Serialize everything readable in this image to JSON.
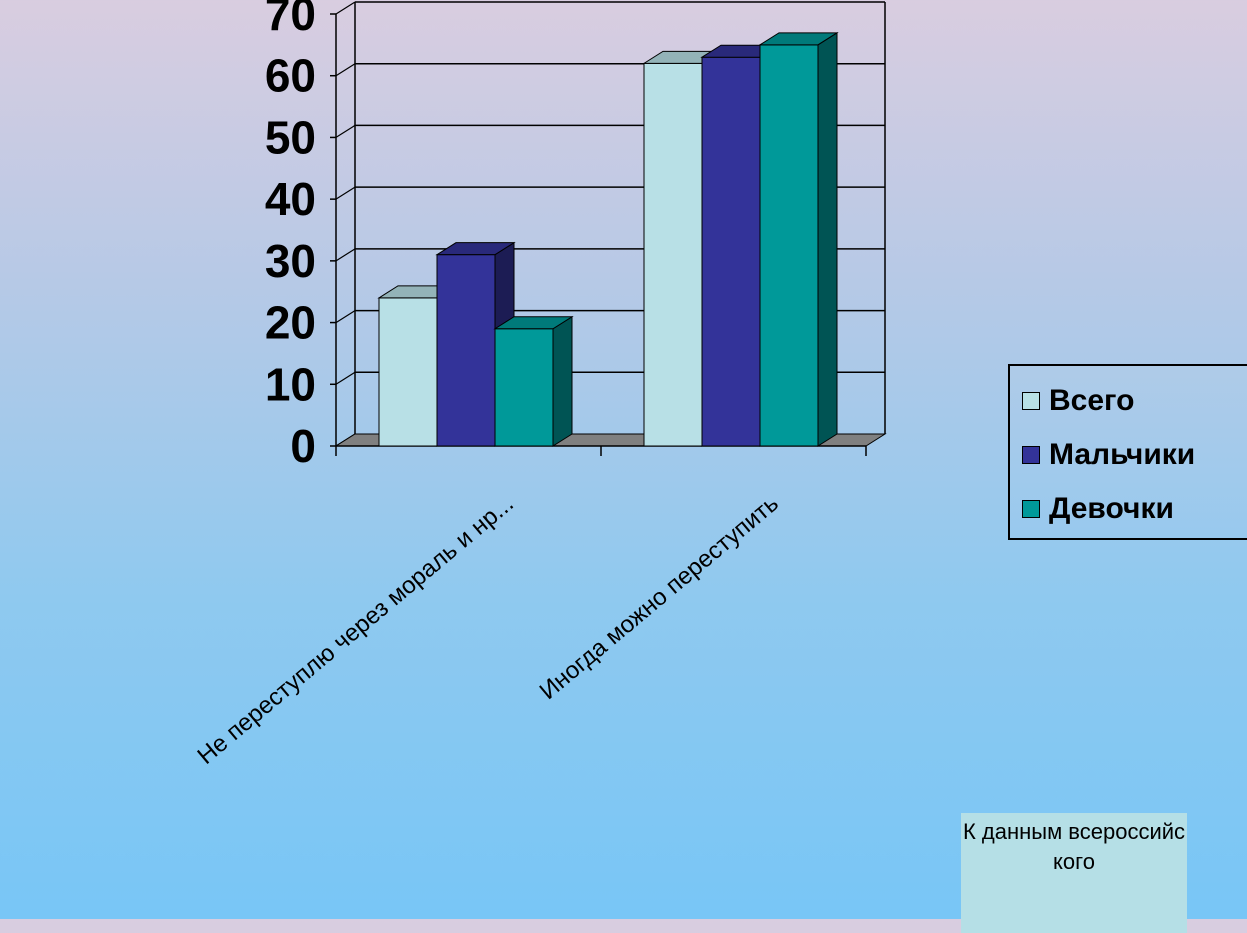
{
  "chart_data": {
    "type": "bar",
    "categories": [
      "Не переступлю через мораль и нр...",
      "Иногда можно переступить"
    ],
    "series": [
      {
        "name": "Всего",
        "values": [
          24,
          62
        ],
        "color": "#b8e0e6"
      },
      {
        "name": "Мальчики",
        "values": [
          31,
          63
        ],
        "color": "#333399"
      },
      {
        "name": "Девочки",
        "values": [
          19,
          65
        ],
        "color": "#009999"
      }
    ],
    "y_ticks": [
      "0",
      "10",
      "20",
      "30",
      "40",
      "50",
      "60",
      "70"
    ],
    "ylim": [
      0,
      70
    ],
    "grid": true,
    "legend_position": "right",
    "style": "3d-column"
  },
  "note": {
    "text": "К данным всероссийского"
  }
}
